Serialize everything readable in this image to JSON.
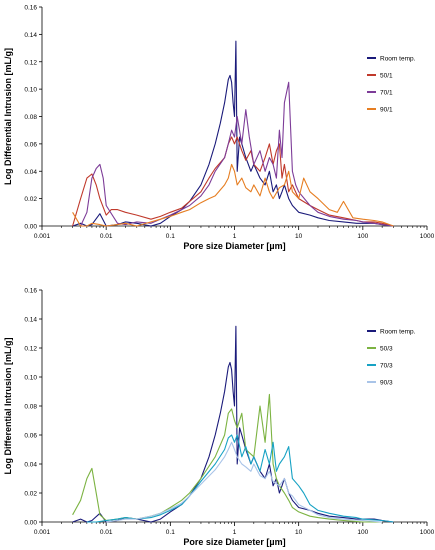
{
  "chart_data": [
    {
      "type": "line",
      "xscale": "log",
      "xlim": [
        0.001,
        1000
      ],
      "ylim": [
        0,
        0.16
      ],
      "xlabel": "Pore size Diameter [µm]",
      "ylabel": "Log Differential Intrusion [mL/g]",
      "xticks": [
        0.001,
        0.01,
        0.1,
        1,
        10,
        100,
        1000
      ],
      "xtick_labels": [
        "0.001",
        "0.01",
        "0.1",
        "1",
        "10",
        "100",
        "1000"
      ],
      "yticks": [
        0,
        0.02,
        0.04,
        0.06,
        0.08,
        0.1,
        0.12,
        0.14,
        0.16
      ],
      "ytick_labels": [
        "0.00",
        "0.02",
        "0.04",
        "0.06",
        "0.08",
        "0.10",
        "0.12",
        "0.14",
        "0.16"
      ],
      "grid": false,
      "legend_position": "right",
      "series": [
        {
          "name": "Room temp.",
          "color": "#1a1a7a",
          "x": [
            0.003,
            0.004,
            0.005,
            0.006,
            0.008,
            0.01,
            0.015,
            0.02,
            0.03,
            0.05,
            0.07,
            0.1,
            0.15,
            0.2,
            0.3,
            0.4,
            0.5,
            0.6,
            0.7,
            0.8,
            0.85,
            0.9,
            0.95,
            1.0,
            1.05,
            1.1,
            1.2,
            1.3,
            1.5,
            1.8,
            2,
            2.5,
            3,
            3.5,
            4,
            4.5,
            5,
            5.5,
            6,
            7,
            8,
            10,
            15,
            20,
            30,
            50,
            80,
            100,
            150,
            200,
            300
          ],
          "y": [
            0.0,
            0.002,
            0.0,
            0.001,
            0.009,
            0.0,
            0.001,
            0.003,
            0.002,
            0.0,
            0.002,
            0.007,
            0.012,
            0.018,
            0.03,
            0.045,
            0.06,
            0.075,
            0.09,
            0.107,
            0.11,
            0.105,
            0.09,
            0.08,
            0.135,
            0.04,
            0.065,
            0.06,
            0.05,
            0.04,
            0.045,
            0.035,
            0.03,
            0.04,
            0.025,
            0.03,
            0.02,
            0.025,
            0.03,
            0.02,
            0.015,
            0.01,
            0.008,
            0.006,
            0.004,
            0.003,
            0.002,
            0.002,
            0.002,
            0.001,
            0.0
          ]
        },
        {
          "name": "50/1",
          "color": "#c0392b",
          "x": [
            0.003,
            0.004,
            0.005,
            0.006,
            0.007,
            0.008,
            0.01,
            0.012,
            0.015,
            0.02,
            0.03,
            0.05,
            0.07,
            0.1,
            0.15,
            0.2,
            0.3,
            0.4,
            0.5,
            0.7,
            0.8,
            0.9,
            1.0,
            1.1,
            1.3,
            1.5,
            1.8,
            2,
            2.5,
            3,
            3.5,
            4,
            4.5,
            5,
            5.5,
            6,
            7,
            8,
            10,
            15,
            20,
            30,
            50,
            80,
            100,
            150,
            200,
            300
          ],
          "y": [
            0.0,
            0.02,
            0.035,
            0.038,
            0.03,
            0.02,
            0.008,
            0.012,
            0.012,
            0.01,
            0.008,
            0.005,
            0.007,
            0.01,
            0.013,
            0.018,
            0.025,
            0.035,
            0.042,
            0.05,
            0.06,
            0.065,
            0.06,
            0.065,
            0.055,
            0.048,
            0.055,
            0.045,
            0.04,
            0.05,
            0.06,
            0.045,
            0.055,
            0.06,
            0.035,
            0.045,
            0.025,
            0.03,
            0.02,
            0.015,
            0.012,
            0.008,
            0.006,
            0.004,
            0.003,
            0.003,
            0.002,
            0.0
          ]
        },
        {
          "name": "70/1",
          "color": "#7d3c98",
          "x": [
            0.004,
            0.005,
            0.006,
            0.007,
            0.008,
            0.009,
            0.01,
            0.015,
            0.02,
            0.03,
            0.05,
            0.07,
            0.1,
            0.15,
            0.2,
            0.3,
            0.4,
            0.5,
            0.7,
            0.8,
            0.9,
            1.0,
            1.1,
            1.3,
            1.5,
            1.7,
            2,
            2.5,
            3,
            3.5,
            4,
            4.5,
            5,
            5.5,
            6,
            7,
            8,
            9,
            10,
            15,
            20,
            30,
            50,
            80,
            100,
            150,
            200,
            300
          ],
          "y": [
            0.0,
            0.01,
            0.035,
            0.042,
            0.045,
            0.035,
            0.015,
            0.002,
            0.001,
            0.003,
            0.002,
            0.005,
            0.008,
            0.012,
            0.015,
            0.022,
            0.03,
            0.04,
            0.05,
            0.06,
            0.07,
            0.065,
            0.08,
            0.06,
            0.085,
            0.065,
            0.045,
            0.055,
            0.04,
            0.05,
            0.045,
            0.035,
            0.07,
            0.05,
            0.09,
            0.105,
            0.04,
            0.03,
            0.025,
            0.015,
            0.01,
            0.007,
            0.005,
            0.004,
            0.003,
            0.002,
            0.001,
            0.0
          ]
        },
        {
          "name": "90/1",
          "color": "#e67e22",
          "x": [
            0.003,
            0.004,
            0.005,
            0.006,
            0.008,
            0.01,
            0.015,
            0.02,
            0.03,
            0.05,
            0.07,
            0.1,
            0.15,
            0.2,
            0.3,
            0.4,
            0.5,
            0.7,
            0.8,
            0.9,
            1.0,
            1.1,
            1.3,
            1.5,
            1.8,
            2,
            2.5,
            3,
            3.5,
            4,
            5,
            6,
            7,
            8,
            10,
            12,
            15,
            20,
            30,
            40,
            50,
            70,
            100,
            150,
            200,
            300
          ],
          "y": [
            0.01,
            0.0,
            0.0,
            0.002,
            0.001,
            0.0,
            0.001,
            0.002,
            0.0,
            0.003,
            0.005,
            0.007,
            0.01,
            0.012,
            0.017,
            0.02,
            0.022,
            0.03,
            0.035,
            0.045,
            0.04,
            0.03,
            0.035,
            0.028,
            0.025,
            0.03,
            0.022,
            0.035,
            0.025,
            0.02,
            0.028,
            0.03,
            0.04,
            0.025,
            0.02,
            0.035,
            0.025,
            0.02,
            0.012,
            0.01,
            0.018,
            0.006,
            0.005,
            0.004,
            0.003,
            0.0
          ]
        }
      ]
    },
    {
      "type": "line",
      "xscale": "log",
      "xlim": [
        0.001,
        1000
      ],
      "ylim": [
        0,
        0.16
      ],
      "xlabel": "Pore size Diameter [µm]",
      "ylabel": "Log Differential Intrusion [mL/g]",
      "xticks": [
        0.001,
        0.01,
        0.1,
        1,
        10,
        100,
        1000
      ],
      "xtick_labels": [
        "0.001",
        "0.01",
        "0.1",
        "1",
        "10",
        "100",
        "1000"
      ],
      "yticks": [
        0,
        0.02,
        0.04,
        0.06,
        0.08,
        0.1,
        0.12,
        0.14,
        0.16
      ],
      "ytick_labels": [
        "0.00",
        "0.02",
        "0.04",
        "0.06",
        "0.08",
        "0.10",
        "0.12",
        "0.14",
        "0.16"
      ],
      "grid": false,
      "legend_position": "right",
      "series": [
        {
          "name": "Room temp.",
          "color": "#1a1a7a",
          "x": [
            0.003,
            0.004,
            0.005,
            0.006,
            0.008,
            0.01,
            0.015,
            0.02,
            0.03,
            0.05,
            0.07,
            0.1,
            0.15,
            0.2,
            0.3,
            0.4,
            0.5,
            0.6,
            0.7,
            0.8,
            0.85,
            0.9,
            0.95,
            1.0,
            1.05,
            1.1,
            1.2,
            1.3,
            1.5,
            1.8,
            2,
            2.5,
            3,
            3.5,
            4,
            4.5,
            5,
            5.5,
            6,
            7,
            8,
            10,
            15,
            20,
            30,
            50,
            80,
            100,
            150,
            200,
            300
          ],
          "y": [
            0.0,
            0.002,
            0.0,
            0.001,
            0.006,
            0.0,
            0.001,
            0.003,
            0.002,
            0.0,
            0.002,
            0.007,
            0.012,
            0.018,
            0.03,
            0.045,
            0.06,
            0.075,
            0.09,
            0.107,
            0.11,
            0.105,
            0.09,
            0.08,
            0.135,
            0.04,
            0.065,
            0.06,
            0.05,
            0.04,
            0.045,
            0.035,
            0.03,
            0.04,
            0.025,
            0.03,
            0.02,
            0.025,
            0.03,
            0.02,
            0.015,
            0.01,
            0.008,
            0.006,
            0.004,
            0.003,
            0.002,
            0.002,
            0.002,
            0.001,
            0.0
          ]
        },
        {
          "name": "50/3",
          "color": "#7cb342",
          "x": [
            0.003,
            0.004,
            0.005,
            0.006,
            0.007,
            0.008,
            0.01,
            0.015,
            0.02,
            0.03,
            0.05,
            0.07,
            0.1,
            0.15,
            0.2,
            0.3,
            0.5,
            0.7,
            0.8,
            0.9,
            1.0,
            1.1,
            1.3,
            1.5,
            2,
            2.5,
            3,
            3.5,
            4,
            4.5,
            5,
            6,
            7,
            8,
            10,
            15,
            20,
            30,
            50,
            100,
            200
          ],
          "y": [
            0.005,
            0.015,
            0.03,
            0.037,
            0.02,
            0.005,
            0.001,
            0.002,
            0.003,
            0.002,
            0.004,
            0.006,
            0.01,
            0.015,
            0.02,
            0.03,
            0.045,
            0.06,
            0.075,
            0.078,
            0.07,
            0.065,
            0.075,
            0.05,
            0.045,
            0.08,
            0.055,
            0.088,
            0.04,
            0.03,
            0.025,
            0.02,
            0.015,
            0.01,
            0.007,
            0.004,
            0.003,
            0.002,
            0.001,
            0.0,
            0.0
          ]
        },
        {
          "name": "70/3",
          "color": "#17a2c4",
          "x": [
            0.005,
            0.007,
            0.01,
            0.015,
            0.02,
            0.03,
            0.05,
            0.07,
            0.1,
            0.15,
            0.2,
            0.3,
            0.5,
            0.7,
            0.8,
            0.9,
            1.0,
            1.1,
            1.3,
            1.5,
            1.8,
            2,
            2.5,
            3,
            3.5,
            4,
            4.5,
            5,
            6,
            7,
            8,
            10,
            12,
            15,
            20,
            30,
            50,
            80,
            100,
            200,
            300
          ],
          "y": [
            0.0,
            0.0,
            0.001,
            0.002,
            0.003,
            0.002,
            0.003,
            0.005,
            0.008,
            0.012,
            0.018,
            0.028,
            0.04,
            0.05,
            0.058,
            0.06,
            0.055,
            0.06,
            0.045,
            0.052,
            0.04,
            0.045,
            0.035,
            0.05,
            0.04,
            0.055,
            0.035,
            0.04,
            0.045,
            0.052,
            0.03,
            0.025,
            0.02,
            0.012,
            0.008,
            0.006,
            0.004,
            0.003,
            0.002,
            0.001,
            0.0
          ]
        },
        {
          "name": "90/3",
          "color": "#a9c4e8",
          "x": [
            0.01,
            0.015,
            0.02,
            0.03,
            0.05,
            0.07,
            0.1,
            0.15,
            0.2,
            0.3,
            0.5,
            0.7,
            0.8,
            0.9,
            1.0,
            1.1,
            1.3,
            1.5,
            1.8,
            2,
            2.5,
            3,
            3.5,
            4,
            5,
            6,
            7,
            8,
            10,
            15,
            20,
            30,
            50,
            100,
            200
          ],
          "y": [
            0.0,
            0.001,
            0.002,
            0.002,
            0.004,
            0.006,
            0.009,
            0.013,
            0.018,
            0.026,
            0.036,
            0.045,
            0.05,
            0.055,
            0.05,
            0.045,
            0.04,
            0.038,
            0.035,
            0.04,
            0.032,
            0.03,
            0.035,
            0.028,
            0.025,
            0.03,
            0.02,
            0.018,
            0.012,
            0.008,
            0.005,
            0.003,
            0.002,
            0.001,
            0.0
          ]
        }
      ]
    }
  ]
}
